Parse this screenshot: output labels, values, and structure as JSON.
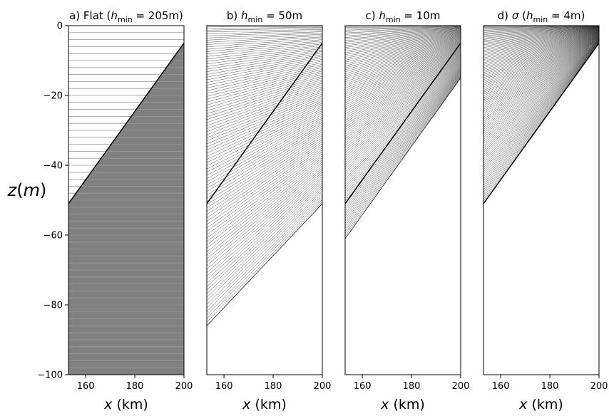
{
  "ylabel": {
    "var": "z",
    "unit": "m"
  },
  "colors": {
    "fill": "#808080",
    "line": "#000000",
    "gridline": "#999999"
  },
  "chart_data": [
    {
      "type": "line",
      "panel": "a",
      "title": {
        "prefix": "a) Flat (",
        "sym": "h",
        "sub": "min",
        "rest": " = 205m)"
      },
      "xlabel": {
        "var": "x",
        "unit": " (km)"
      },
      "xlim": [
        153,
        200
      ],
      "ylim": [
        -100,
        0
      ],
      "xticks": [
        160,
        180,
        200
      ],
      "yticks": [
        0,
        -20,
        -40,
        -60,
        -80,
        -100
      ],
      "bathymetry": {
        "x": [
          153,
          200
        ],
        "z": [
          -51,
          -5
        ]
      },
      "levels": {
        "count": 50,
        "kind": "flat",
        "spacing_m": 2,
        "below_fill": true
      }
    },
    {
      "type": "line",
      "panel": "b",
      "title": {
        "prefix": "b) ",
        "sym": "h",
        "sub": "min",
        "rest": " = 50m"
      },
      "xlabel": {
        "var": "x",
        "unit": " (km)"
      },
      "xlim": [
        153,
        200
      ],
      "ylim": [
        -100,
        0
      ],
      "xticks": [
        160,
        180,
        200
      ],
      "yticks": [],
      "bathymetry": {
        "x": [
          153,
          200
        ],
        "z": [
          -51,
          -5
        ]
      },
      "levels": {
        "count": 100,
        "kind": "hybrid",
        "bottom_z": [
          -86,
          -51
        ]
      }
    },
    {
      "type": "line",
      "panel": "c",
      "title": {
        "prefix": "c) ",
        "sym": "h",
        "sub": "min",
        "rest": " = 10m"
      },
      "xlabel": {
        "var": "x",
        "unit": " (km)"
      },
      "xlim": [
        153,
        200
      ],
      "ylim": [
        -100,
        0
      ],
      "xticks": [
        160,
        180,
        200
      ],
      "yticks": [],
      "bathymetry": {
        "x": [
          153,
          200
        ],
        "z": [
          -51,
          -5
        ]
      },
      "levels": {
        "count": 100,
        "kind": "hybrid",
        "bottom_z": [
          -61,
          -15
        ]
      }
    },
    {
      "type": "line",
      "panel": "d",
      "title": {
        "prefix": "d) ",
        "sym": "σ",
        "sub": "",
        "rest": " (",
        "sym2": "h",
        "sub2": "min",
        "rest2": " = 4m)"
      },
      "xlabel": {
        "var": "x",
        "unit": " (km)"
      },
      "xlim": [
        153,
        200
      ],
      "ylim": [
        -100,
        0
      ],
      "xticks": [
        160,
        180,
        200
      ],
      "yticks": [],
      "bathymetry": {
        "x": [
          153,
          200
        ],
        "z": [
          -51,
          -5
        ]
      },
      "levels": {
        "count": 100,
        "kind": "sigma"
      }
    }
  ]
}
